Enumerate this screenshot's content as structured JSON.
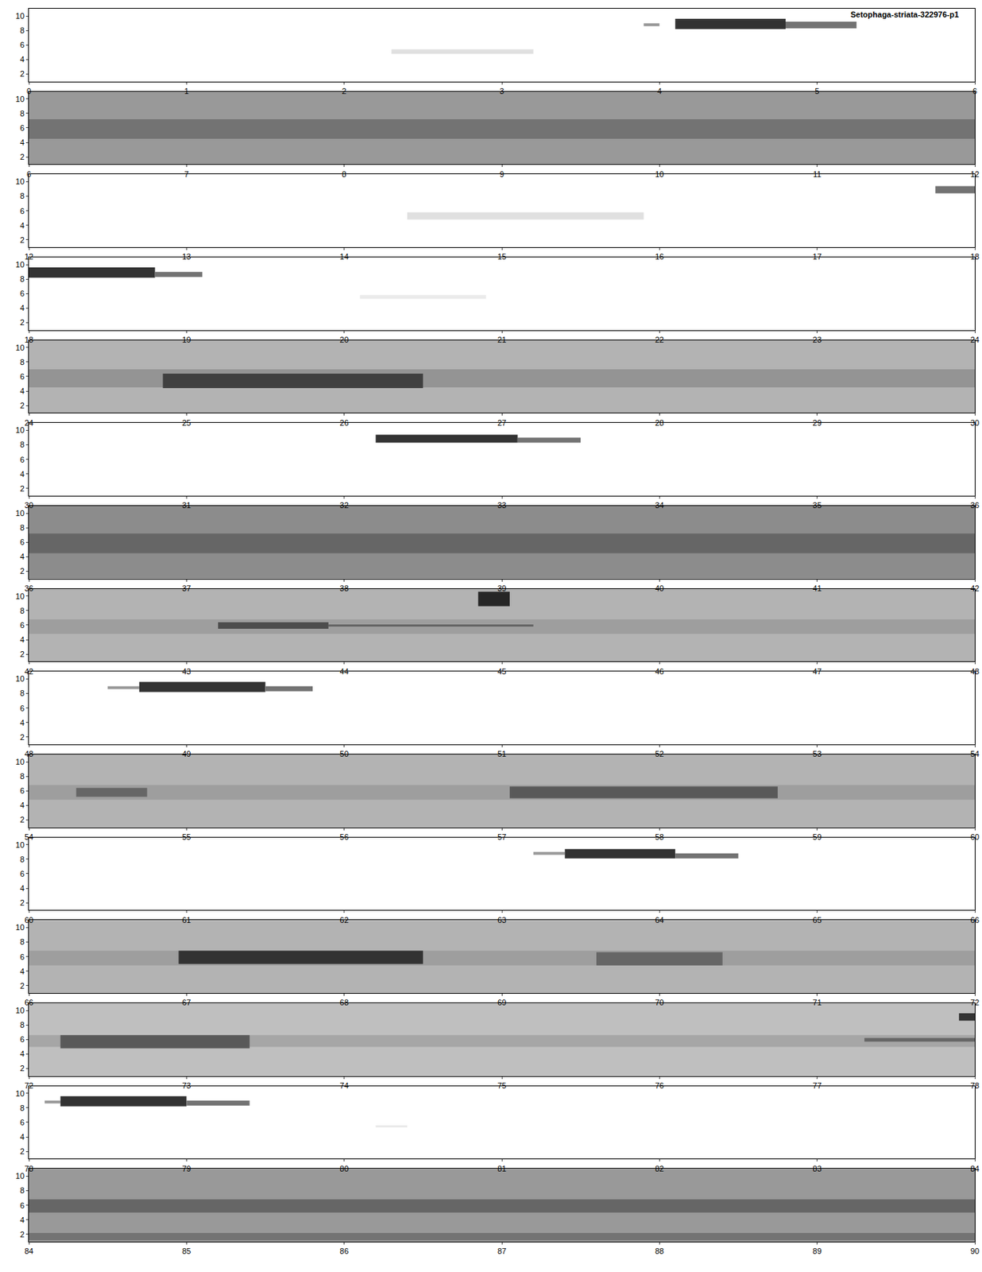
{
  "chart_data": {
    "type": "spectrogram",
    "title": "Setophaga-striata-322976-p1",
    "ylim": [
      1,
      11
    ],
    "yticks": [
      2,
      4,
      6,
      8,
      10
    ],
    "grid": false,
    "color": "#000000",
    "panels": [
      {
        "xlim": [
          0,
          6
        ],
        "xticks": [
          0,
          1,
          2,
          3,
          4,
          5,
          6
        ],
        "background": 0,
        "events": [
          {
            "start": 2.3,
            "end": 3.2,
            "low": 4.8,
            "high": 5.4,
            "level": 0.12
          },
          {
            "start": 3.9,
            "end": 4.0,
            "low": 8.6,
            "high": 9.0,
            "level": 0.4
          },
          {
            "start": 4.1,
            "end": 4.8,
            "low": 8.2,
            "high": 9.6,
            "level": 0.8
          },
          {
            "start": 4.8,
            "end": 5.25,
            "low": 8.3,
            "high": 9.2,
            "level": 0.55
          }
        ]
      },
      {
        "xlim": [
          6,
          12
        ],
        "xticks": [
          6,
          7,
          8,
          9,
          10,
          11,
          12
        ],
        "background": 0.4,
        "events": [
          {
            "start": 6,
            "end": 12,
            "low": 4.5,
            "high": 7.2,
            "level": 0.55
          }
        ]
      },
      {
        "xlim": [
          12,
          18
        ],
        "xticks": [
          12,
          13,
          14,
          15,
          16,
          17,
          18
        ],
        "background": 0,
        "events": [
          {
            "start": 14.4,
            "end": 15.9,
            "low": 4.8,
            "high": 5.8,
            "level": 0.12
          },
          {
            "start": 17.75,
            "end": 18,
            "low": 8.4,
            "high": 9.4,
            "level": 0.55
          }
        ]
      },
      {
        "xlim": [
          18,
          24
        ],
        "xticks": [
          18,
          19,
          20,
          21,
          22,
          23,
          24
        ],
        "background": 0,
        "events": [
          {
            "start": 18,
            "end": 18.8,
            "low": 8.2,
            "high": 9.6,
            "level": 0.8
          },
          {
            "start": 18.8,
            "end": 19.1,
            "low": 8.3,
            "high": 9.0,
            "level": 0.55
          },
          {
            "start": 20.1,
            "end": 20.9,
            "low": 5.3,
            "high": 5.8,
            "level": 0.08
          }
        ]
      },
      {
        "xlim": [
          24,
          30
        ],
        "xticks": [
          24,
          25,
          26,
          27,
          28,
          29,
          30
        ],
        "background": 0.3,
        "events": [
          {
            "start": 24,
            "end": 30,
            "low": 4.5,
            "high": 7.0,
            "level": 0.42
          },
          {
            "start": 24.85,
            "end": 26.5,
            "low": 4.4,
            "high": 6.4,
            "level": 0.75
          }
        ]
      },
      {
        "xlim": [
          30,
          36
        ],
        "xticks": [
          30,
          31,
          32,
          33,
          34,
          35,
          36
        ],
        "background": 0,
        "events": [
          {
            "start": 32.2,
            "end": 33.1,
            "low": 8.3,
            "high": 9.4,
            "level": 0.8
          },
          {
            "start": 33.1,
            "end": 33.5,
            "low": 8.3,
            "high": 9.0,
            "level": 0.55
          }
        ]
      },
      {
        "xlim": [
          36,
          42
        ],
        "xticks": [
          36,
          37,
          38,
          39,
          40,
          41,
          42
        ],
        "background": 0.45,
        "events": [
          {
            "start": 36,
            "end": 42,
            "low": 4.5,
            "high": 7.2,
            "level": 0.6
          }
        ]
      },
      {
        "xlim": [
          42,
          48
        ],
        "xticks": [
          42,
          43,
          44,
          45,
          46,
          47,
          48
        ],
        "background": 0.3,
        "events": [
          {
            "start": 42,
            "end": 48,
            "low": 4.8,
            "high": 6.8,
            "level": 0.38
          },
          {
            "start": 43.2,
            "end": 43.9,
            "low": 5.5,
            "high": 6.4,
            "level": 0.7
          },
          {
            "start": 43.9,
            "end": 45.2,
            "low": 5.8,
            "high": 6.1,
            "level": 0.6
          },
          {
            "start": 44.85,
            "end": 45.05,
            "low": 8.6,
            "high": 10.6,
            "level": 0.85
          }
        ]
      },
      {
        "xlim": [
          48,
          54
        ],
        "xticks": [
          48,
          49,
          50,
          51,
          52,
          53,
          54
        ],
        "background": 0,
        "events": [
          {
            "start": 48.5,
            "end": 48.7,
            "low": 8.6,
            "high": 9.0,
            "level": 0.4
          },
          {
            "start": 48.7,
            "end": 49.5,
            "low": 8.2,
            "high": 9.6,
            "level": 0.8
          },
          {
            "start": 49.5,
            "end": 49.8,
            "low": 8.3,
            "high": 9.0,
            "level": 0.55
          }
        ]
      },
      {
        "xlim": [
          54,
          60
        ],
        "xticks": [
          54,
          55,
          56,
          57,
          58,
          59,
          60
        ],
        "background": 0.3,
        "events": [
          {
            "start": 54,
            "end": 60,
            "low": 4.8,
            "high": 6.8,
            "level": 0.38
          },
          {
            "start": 54.3,
            "end": 54.75,
            "low": 5.2,
            "high": 6.4,
            "level": 0.6
          },
          {
            "start": 57.05,
            "end": 58.75,
            "low": 5.0,
            "high": 6.6,
            "level": 0.65
          }
        ]
      },
      {
        "xlim": [
          60,
          66
        ],
        "xticks": [
          60,
          61,
          62,
          63,
          64,
          65,
          66
        ],
        "background": 0,
        "events": [
          {
            "start": 63.2,
            "end": 63.4,
            "low": 8.6,
            "high": 9.0,
            "level": 0.4
          },
          {
            "start": 63.4,
            "end": 64.1,
            "low": 8.1,
            "high": 9.4,
            "level": 0.8
          },
          {
            "start": 64.1,
            "end": 64.5,
            "low": 8.1,
            "high": 8.8,
            "level": 0.55
          }
        ]
      },
      {
        "xlim": [
          66,
          72
        ],
        "xticks": [
          66,
          67,
          68,
          69,
          70,
          71,
          72
        ],
        "background": 0.3,
        "events": [
          {
            "start": 66,
            "end": 72,
            "low": 4.8,
            "high": 6.8,
            "level": 0.38
          },
          {
            "start": 66.95,
            "end": 68.5,
            "low": 5.0,
            "high": 6.8,
            "level": 0.8
          },
          {
            "start": 69.6,
            "end": 70.4,
            "low": 4.8,
            "high": 6.6,
            "level": 0.6
          }
        ]
      },
      {
        "xlim": [
          72,
          78
        ],
        "xticks": [
          72,
          73,
          74,
          75,
          76,
          77,
          78
        ],
        "background": 0.25,
        "events": [
          {
            "start": 72,
            "end": 78,
            "low": 5.0,
            "high": 6.6,
            "level": 0.35
          },
          {
            "start": 72.2,
            "end": 73.4,
            "low": 4.8,
            "high": 6.6,
            "level": 0.65
          },
          {
            "start": 77.3,
            "end": 78,
            "low": 5.7,
            "high": 6.2,
            "level": 0.6
          },
          {
            "start": 77.9,
            "end": 78,
            "low": 8.6,
            "high": 9.6,
            "level": 0.8
          }
        ]
      },
      {
        "xlim": [
          78,
          84
        ],
        "xticks": [
          78,
          79,
          80,
          81,
          82,
          83,
          84
        ],
        "background": 0,
        "events": [
          {
            "start": 78.1,
            "end": 78.2,
            "low": 8.6,
            "high": 9.0,
            "level": 0.4
          },
          {
            "start": 78.2,
            "end": 79.0,
            "low": 8.2,
            "high": 9.6,
            "level": 0.8
          },
          {
            "start": 79.0,
            "end": 79.4,
            "low": 8.3,
            "high": 9.0,
            "level": 0.55
          },
          {
            "start": 80.2,
            "end": 80.4,
            "low": 5.3,
            "high": 5.6,
            "level": 0.08
          }
        ]
      },
      {
        "xlim": [
          84,
          90
        ],
        "xticks": [
          84,
          85,
          86,
          87,
          88,
          89,
          90
        ],
        "background": 0.4,
        "events": [
          {
            "start": 84,
            "end": 90,
            "low": 5.0,
            "high": 6.8,
            "level": 0.6
          },
          {
            "start": 84,
            "end": 90,
            "low": 1.2,
            "high": 2.2,
            "level": 0.55
          }
        ]
      }
    ]
  }
}
